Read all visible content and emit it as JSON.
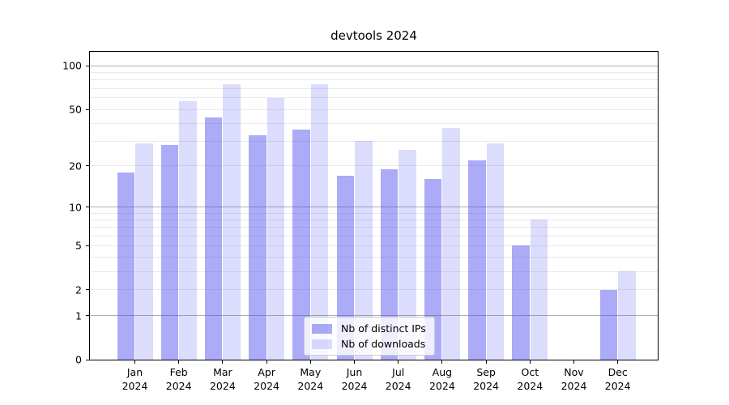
{
  "chart_data": {
    "type": "bar",
    "title": "devtools 2024",
    "categories": [
      {
        "month": "Jan",
        "year": "2024"
      },
      {
        "month": "Feb",
        "year": "2024"
      },
      {
        "month": "Mar",
        "year": "2024"
      },
      {
        "month": "Apr",
        "year": "2024"
      },
      {
        "month": "May",
        "year": "2024"
      },
      {
        "month": "Jun",
        "year": "2024"
      },
      {
        "month": "Jul",
        "year": "2024"
      },
      {
        "month": "Aug",
        "year": "2024"
      },
      {
        "month": "Sep",
        "year": "2024"
      },
      {
        "month": "Oct",
        "year": "2024"
      },
      {
        "month": "Nov",
        "year": "2024"
      },
      {
        "month": "Dec",
        "year": "2024"
      }
    ],
    "series": [
      {
        "name": "Nb of distinct IPs",
        "color": "rgba(68,68,238,0.45)",
        "values": [
          18,
          28,
          44,
          33,
          36,
          17,
          19,
          16,
          22,
          5,
          0,
          2
        ]
      },
      {
        "name": "Nb of downloads",
        "color": "rgba(68,68,238,0.19)",
        "values": [
          29,
          57,
          75,
          60,
          75,
          30,
          26,
          37,
          29,
          8,
          0,
          3
        ]
      }
    ],
    "xlabel": "",
    "ylabel": "",
    "yscale": "log1p",
    "ylim": [
      0,
      125
    ],
    "yticks": [
      0,
      1,
      2,
      5,
      10,
      20,
      50,
      100
    ],
    "grid": {
      "major_values": [
        1,
        10,
        100
      ],
      "minor_values": [
        2,
        3,
        4,
        5,
        6,
        7,
        8,
        9,
        20,
        30,
        40,
        50,
        60,
        70,
        80,
        90
      ],
      "major_color": "#b0b0b0",
      "minor_color": "#e9e9e9"
    },
    "legend": {
      "position": "lower center"
    }
  }
}
